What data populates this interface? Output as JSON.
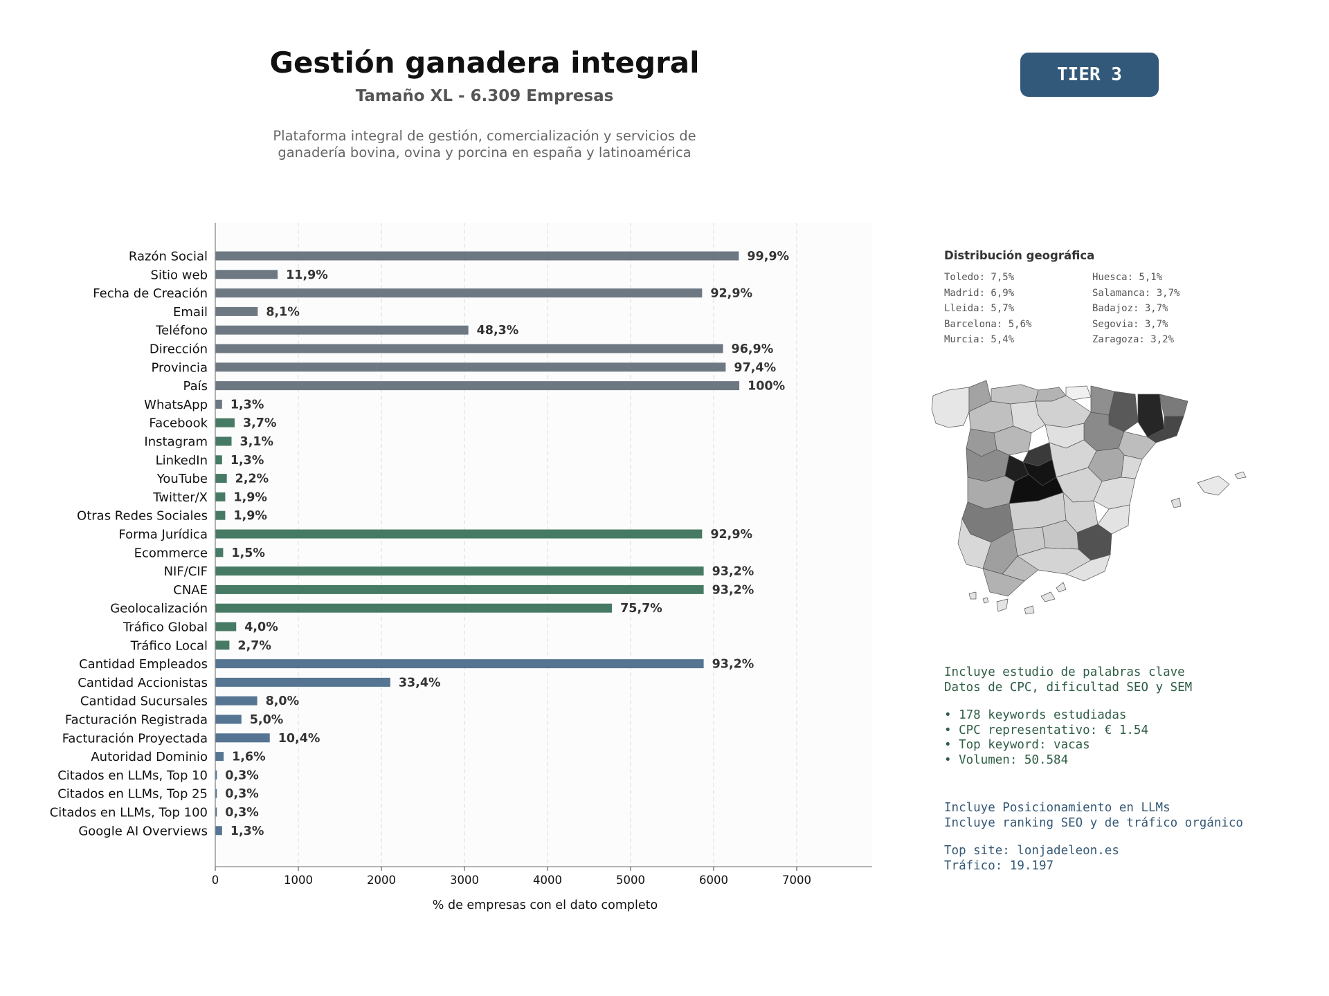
{
  "header": {
    "title": "Gestión ganadera integral",
    "subtitle": "Tamaño XL - 6.309 Empresas",
    "description_lines": [
      "Plataforma integral de gestión, comercialización y servicios de",
      "ganadería bovina, ovina y porcina en españa y latinoamérica"
    ]
  },
  "badge": {
    "label": "TIER 3",
    "color": "#33597a"
  },
  "colors": {
    "gray": "#6e7883",
    "green": "#477a64",
    "blue": "#557592"
  },
  "chart_data": {
    "type": "bar",
    "orientation": "horizontal",
    "xlabel": "% de empresas con el dato completo",
    "xlim": [
      0,
      7900
    ],
    "xticks": [
      0,
      1000,
      2000,
      3000,
      4000,
      5000,
      6000,
      7000
    ],
    "grid": "vertical dashed",
    "categories": [
      "Razón Social",
      "Sitio web",
      "Fecha de Creación",
      "Email",
      "Teléfono",
      "Dirección",
      "Provincia",
      "País",
      "WhatsApp",
      "Facebook",
      "Instagram",
      "LinkedIn",
      "YouTube",
      "Twitter/X",
      "Otras Redes Sociales",
      "Forma Jurídica",
      "Ecommerce",
      "NIF/CIF",
      "CNAE",
      "Geolocalización",
      "Tráfico Global",
      "Tráfico Local",
      "Cantidad Empleados",
      "Cantidad Accionistas",
      "Cantidad Sucursales",
      "Facturación Registrada",
      "Facturación Proyectada",
      "Autoridad Dominio",
      "Citados en LLMs, Top 10",
      "Citados en LLMs, Top 25",
      "Citados en LLMs, Top 100",
      "Google AI Overviews"
    ],
    "values": [
      6303,
      751,
      5861,
      511,
      3047,
      6113,
      6145,
      6309,
      82,
      233,
      196,
      82,
      139,
      120,
      120,
      5861,
      95,
      5880,
      5880,
      4776,
      252,
      170,
      5880,
      2107,
      505,
      315,
      656,
      101,
      19,
      19,
      19,
      82
    ],
    "data_labels": [
      "99,9%",
      "11,9%",
      "92,9%",
      "8,1%",
      "48,3%",
      "96,9%",
      "97,4%",
      "100%",
      "1,3%",
      "3,7%",
      "3,1%",
      "1,3%",
      "2,2%",
      "1,9%",
      "1,9%",
      "92,9%",
      "1,5%",
      "93,2%",
      "93,2%",
      "75,7%",
      "4,0%",
      "2,7%",
      "93,2%",
      "33,4%",
      "8,0%",
      "5,0%",
      "10,4%",
      "1,6%",
      "0,3%",
      "0,3%",
      "0,3%",
      "1,3%"
    ],
    "bar_groups": [
      "gray",
      "gray",
      "gray",
      "gray",
      "gray",
      "gray",
      "gray",
      "gray",
      "gray",
      "green",
      "green",
      "green",
      "green",
      "green",
      "green",
      "green",
      "green",
      "green",
      "green",
      "green",
      "green",
      "green",
      "blue",
      "blue",
      "blue",
      "blue",
      "blue",
      "blue",
      "blue",
      "blue",
      "blue",
      "blue"
    ]
  },
  "geo": {
    "title": "Distribución geográfica",
    "left_col": [
      "Toledo: 7,5%",
      "Madrid: 6,9%",
      "Lleida: 5,7%",
      "Barcelona: 5,6%",
      "Murcia: 5,4%"
    ],
    "right_col": [
      "Huesca: 5,1%",
      "Salamanca: 3,7%",
      "Badajoz: 3,7%",
      "Segovia: 3,7%",
      "Zaragoza: 3,2%"
    ]
  },
  "keywords": {
    "intro_lines": [
      "Incluye estudio de palabras clave",
      "Datos de CPC, dificultad SEO y SEM"
    ],
    "bullets": [
      "• 178 keywords estudiadas",
      "• CPC representativo: € 1.54",
      "• Top keyword: vacas",
      "• Volumen: 50.584"
    ]
  },
  "llm": {
    "lines": [
      "Incluye Posicionamiento en LLMs",
      "Incluye ranking SEO y de tráfico orgánico"
    ],
    "site_lines": [
      "Top site: lonjadeleon.es",
      "Tráfico: 19.197"
    ]
  }
}
